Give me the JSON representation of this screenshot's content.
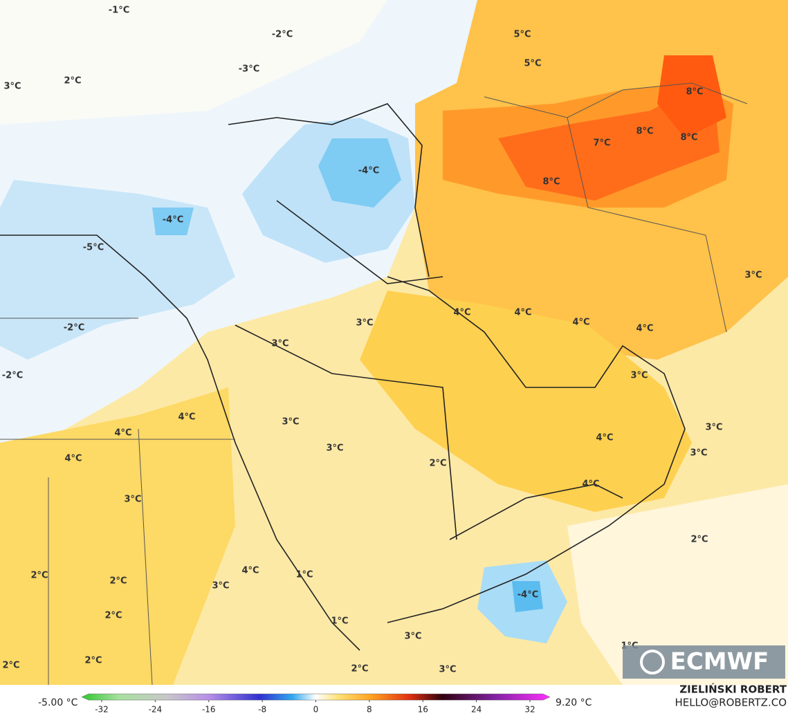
{
  "map": {
    "labels": [
      "-1°C",
      "-2°C",
      "-3°C",
      "3°C",
      "2°C",
      "5°C",
      "5°C",
      "8°C",
      "7°C",
      "8°C",
      "8°C",
      "8°C",
      "-4°C",
      "-4°C",
      "-5°C",
      "3°C",
      "4°C",
      "4°C",
      "4°C",
      "4°C",
      "-2°C",
      "3°C",
      "3°C",
      "-2°C",
      "3°C",
      "4°C",
      "4°C",
      "3°C",
      "3°C",
      "4°C",
      "3°C",
      "4°C",
      "3°C",
      "2°C",
      "4°C",
      "3°C",
      "2°C",
      "2°C",
      "2°C",
      "4°C",
      "3°C",
      "1°C",
      "-4°C",
      "2°C",
      "1°C",
      "3°C",
      "1°C",
      "2°C",
      "2°C",
      "2°C",
      "3°C"
    ]
  },
  "colorbar": {
    "min_label": "-5.00 °C",
    "max_label": "9.20 °C",
    "range": [
      -35,
      35
    ],
    "ticks": [
      -32,
      -24,
      -16,
      -8,
      0,
      8,
      16,
      24,
      32
    ]
  },
  "logo": "ECMWF",
  "credits": {
    "author": "ZIELIŃSKI ROBERT",
    "email": "HELLO@ROBERTZ.CO"
  }
}
